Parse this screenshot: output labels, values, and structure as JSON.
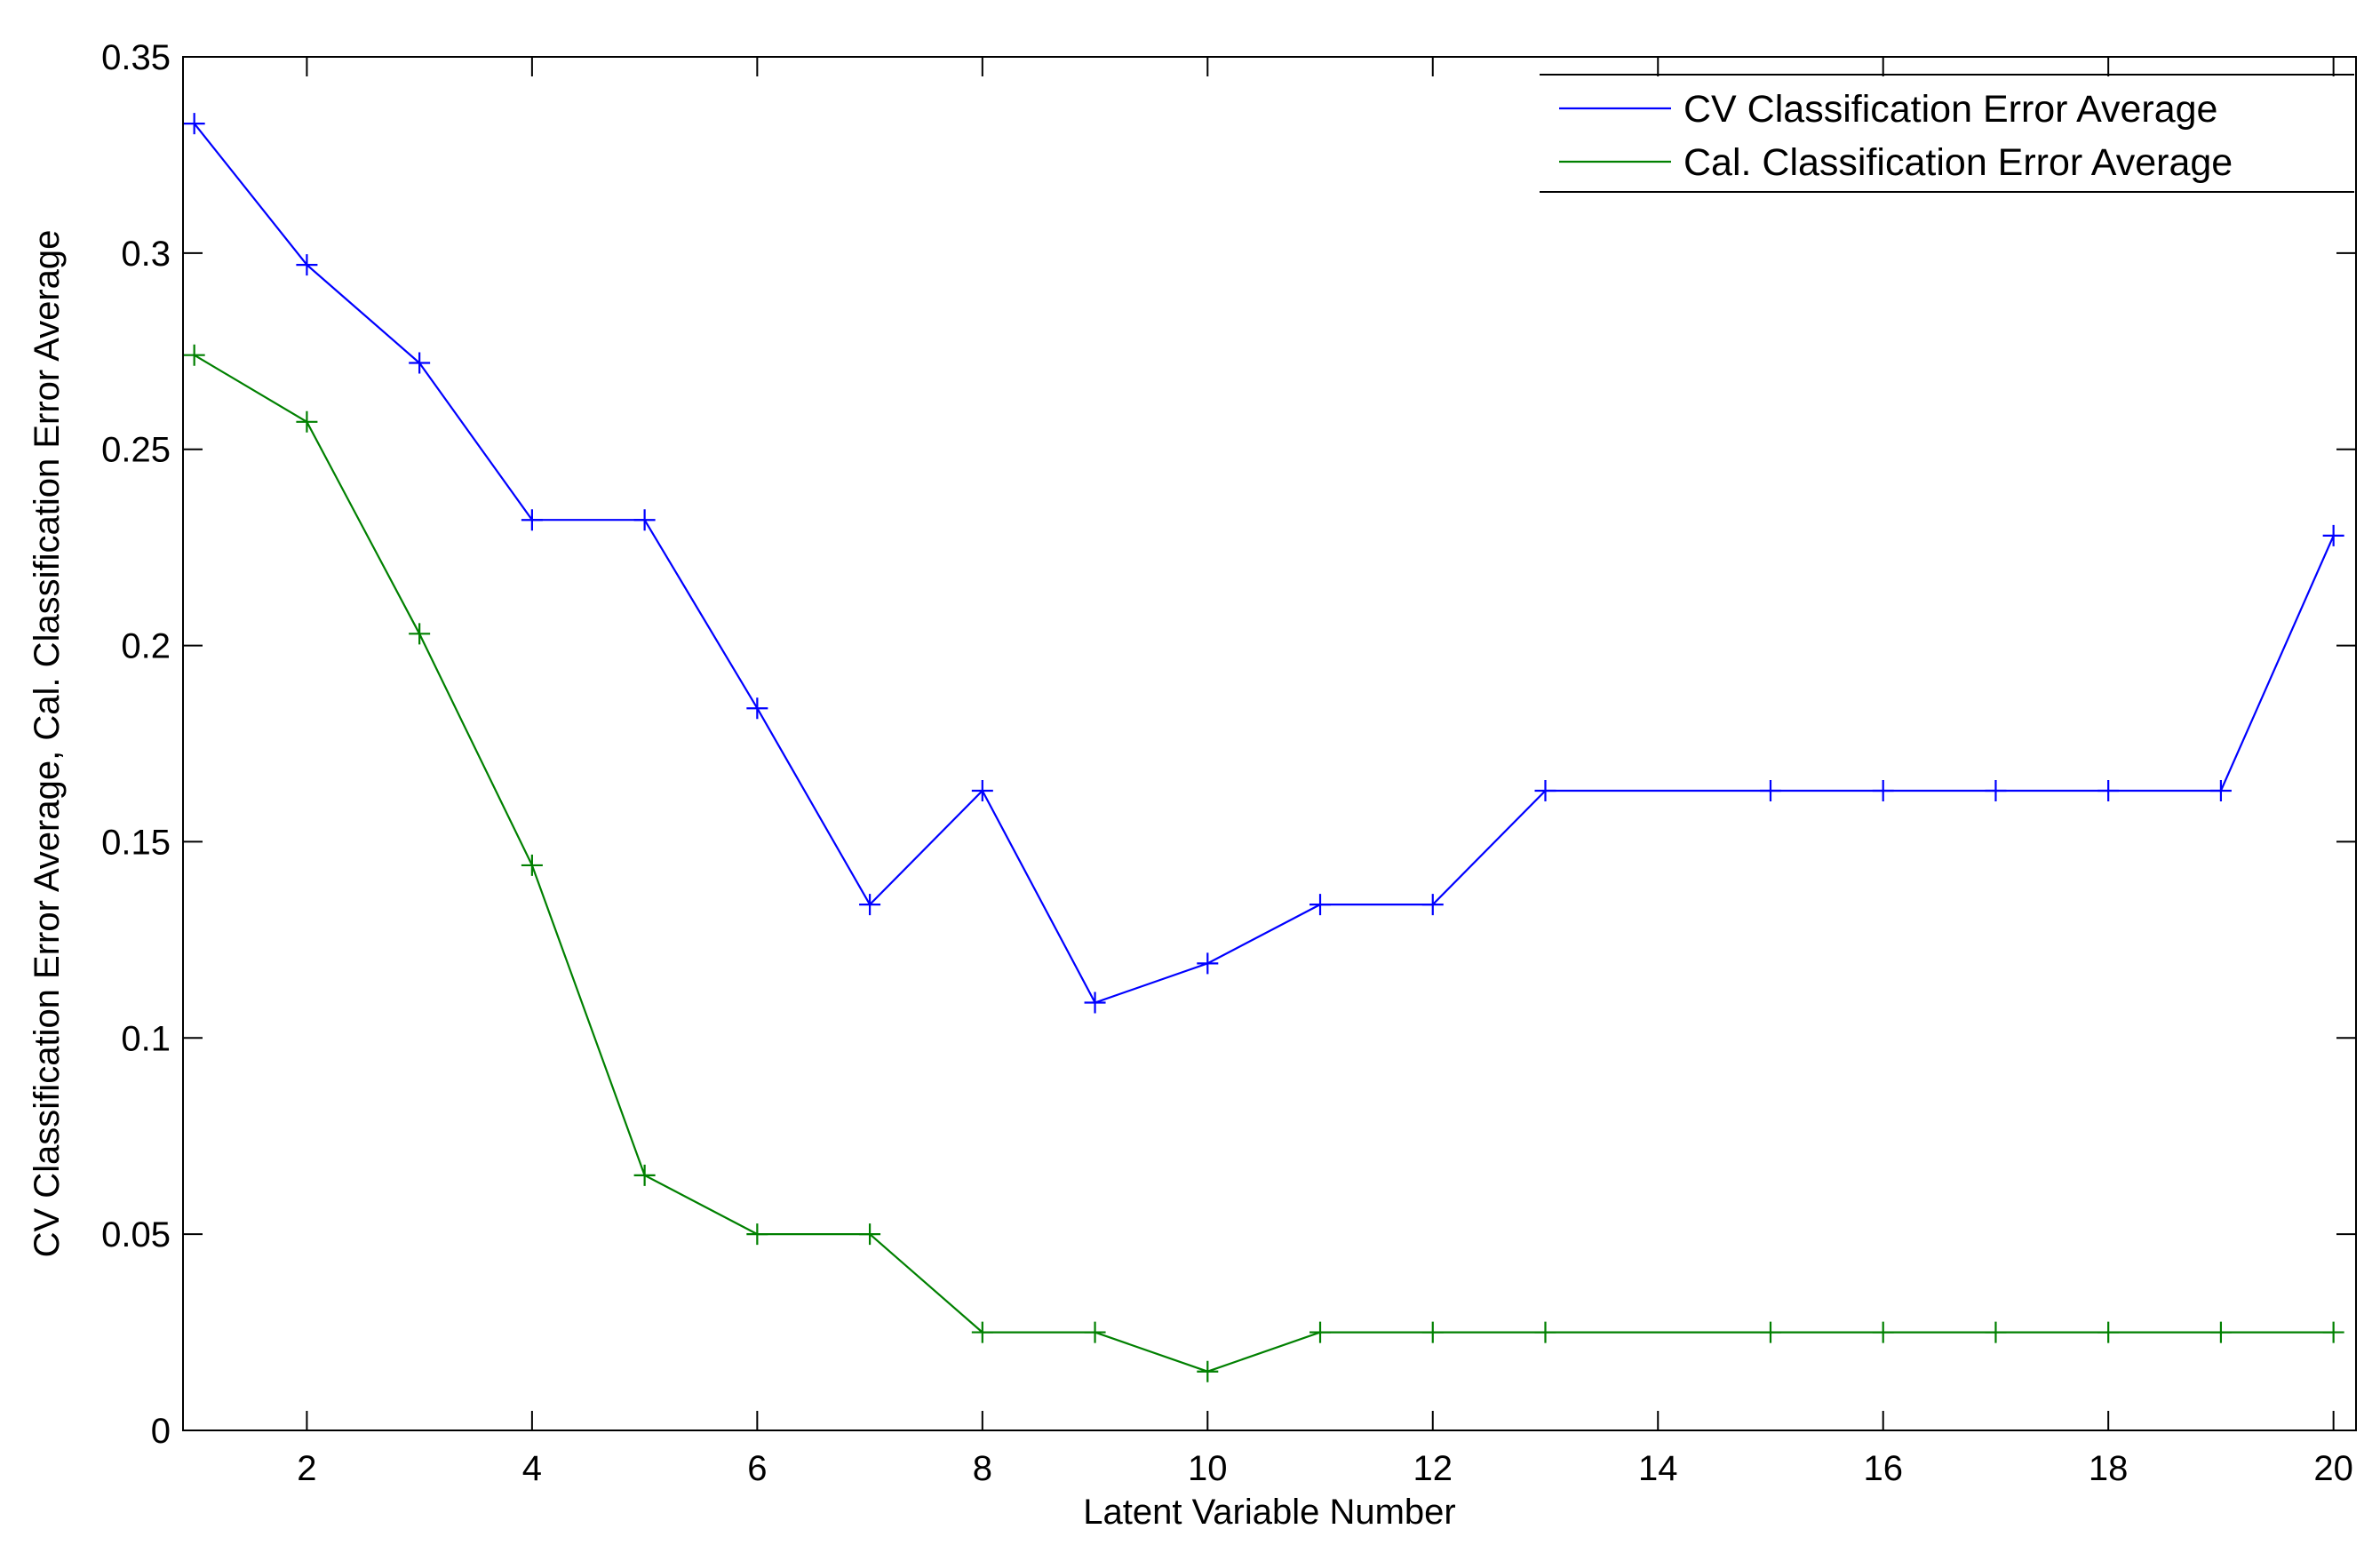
{
  "chart_data": {
    "type": "line",
    "title": "",
    "xlabel": "Latent Variable Number",
    "ylabel": "CV Classification Error Average, Cal. Classification Error Average",
    "xlim": [
      0.9,
      20.2
    ],
    "ylim": [
      0,
      0.35
    ],
    "x_ticks": [
      2,
      4,
      6,
      8,
      10,
      12,
      14,
      16,
      18,
      20
    ],
    "y_ticks": [
      0,
      0.05,
      0.1,
      0.15,
      0.2,
      0.25,
      0.3,
      0.35
    ],
    "y_tick_labels": [
      "0",
      "0.05",
      "0.1",
      "0.15",
      "0.2",
      "0.25",
      "0.3",
      "0.35"
    ],
    "grid": false,
    "legend_position": "top-right",
    "x": [
      1,
      2,
      3,
      4,
      5,
      6,
      7,
      8,
      9,
      10,
      11,
      12,
      13,
      15,
      16,
      17,
      18,
      19,
      20
    ],
    "series": [
      {
        "name": "CV Classification Error Average",
        "color": "#0000ff",
        "values": [
          0.333,
          0.297,
          0.272,
          0.232,
          0.232,
          0.184,
          0.134,
          0.163,
          0.109,
          0.119,
          0.134,
          0.134,
          0.163,
          0.163,
          0.163,
          0.163,
          0.163,
          0.163,
          0.228
        ]
      },
      {
        "name": "Cal. Classification Error Average",
        "color": "#008000",
        "values": [
          0.274,
          0.257,
          0.203,
          0.144,
          0.065,
          0.05,
          0.05,
          0.025,
          0.025,
          0.015,
          0.025,
          0.025,
          0.025,
          0.025,
          0.025,
          0.025,
          0.025,
          0.025,
          0.025
        ]
      }
    ]
  }
}
